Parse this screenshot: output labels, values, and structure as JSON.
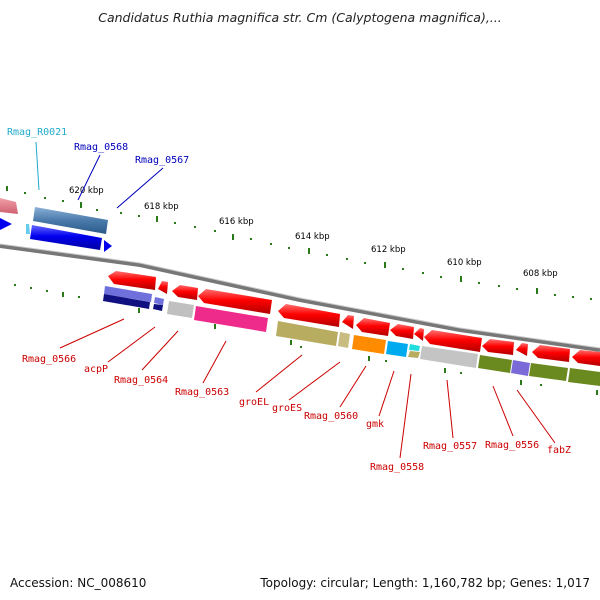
{
  "title": "Candidatus Ruthia magnifica str. Cm (Calyptogena magnifica),...",
  "footer": {
    "accession": "Accession: NC_008610",
    "summary": "Topology: circular; Length: 1,160,782 bp; Genes: 1,017"
  },
  "colors": {
    "backbone": "#777777",
    "tick_marks": "#2a7a1a",
    "label_red": "#cc0000",
    "label_blue": "#0000bb",
    "label_cyan": "#22aacc"
  },
  "scale_labels": [
    "620 kbp",
    "618 kbp",
    "616 kbp",
    "614 kbp",
    "612 kbp",
    "610 kbp",
    "608 kbp"
  ],
  "upper_labels": [
    {
      "text": "Rmag_R0021",
      "color": "#22aacc"
    },
    {
      "text": "Rmag_0568",
      "color": "#0000bb"
    },
    {
      "text": "Rmag_0567",
      "color": "#0000bb"
    }
  ],
  "lower_labels": [
    "Rmag_0566",
    "acpP",
    "Rmag_0564",
    "Rmag_0563",
    "groEL",
    "groES",
    "Rmag_0560",
    "gmk",
    "Rmag_0558",
    "Rmag_0557",
    "Rmag_0556",
    "fabZ"
  ]
}
